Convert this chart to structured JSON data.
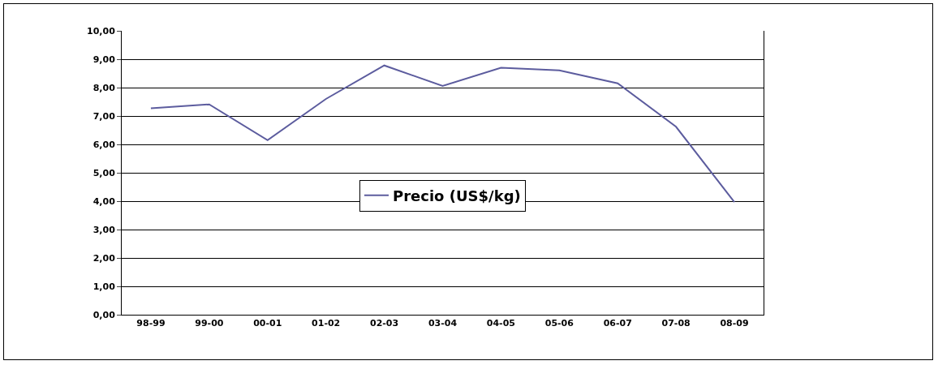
{
  "chart_data": {
    "type": "line",
    "categories": [
      "98-99",
      "99-00",
      "00-01",
      "01-02",
      "02-03",
      "03-04",
      "04-05",
      "05-06",
      "06-07",
      "07-08",
      "08-09"
    ],
    "series": [
      {
        "name": "Precio (US$/kg)",
        "color": "#5c5c9e",
        "values": [
          7.27,
          7.41,
          6.15,
          7.6,
          8.78,
          8.06,
          8.7,
          8.61,
          8.15,
          6.62,
          3.97
        ]
      }
    ],
    "ylim": [
      0,
      10
    ],
    "yticks": [
      {
        "value": 0,
        "label": "0,00"
      },
      {
        "value": 1,
        "label": "1,00"
      },
      {
        "value": 2,
        "label": "2,00"
      },
      {
        "value": 3,
        "label": "3,00"
      },
      {
        "value": 4,
        "label": "4,00"
      },
      {
        "value": 5,
        "label": "5,00"
      },
      {
        "value": 6,
        "label": "6,00"
      },
      {
        "value": 7,
        "label": "7,00"
      },
      {
        "value": 8,
        "label": "8,00"
      },
      {
        "value": 9,
        "label": "9,00"
      },
      {
        "value": 10,
        "label": "10,00"
      }
    ],
    "grid": "y",
    "legend": "center",
    "marker": "none",
    "line_style": "solid"
  }
}
